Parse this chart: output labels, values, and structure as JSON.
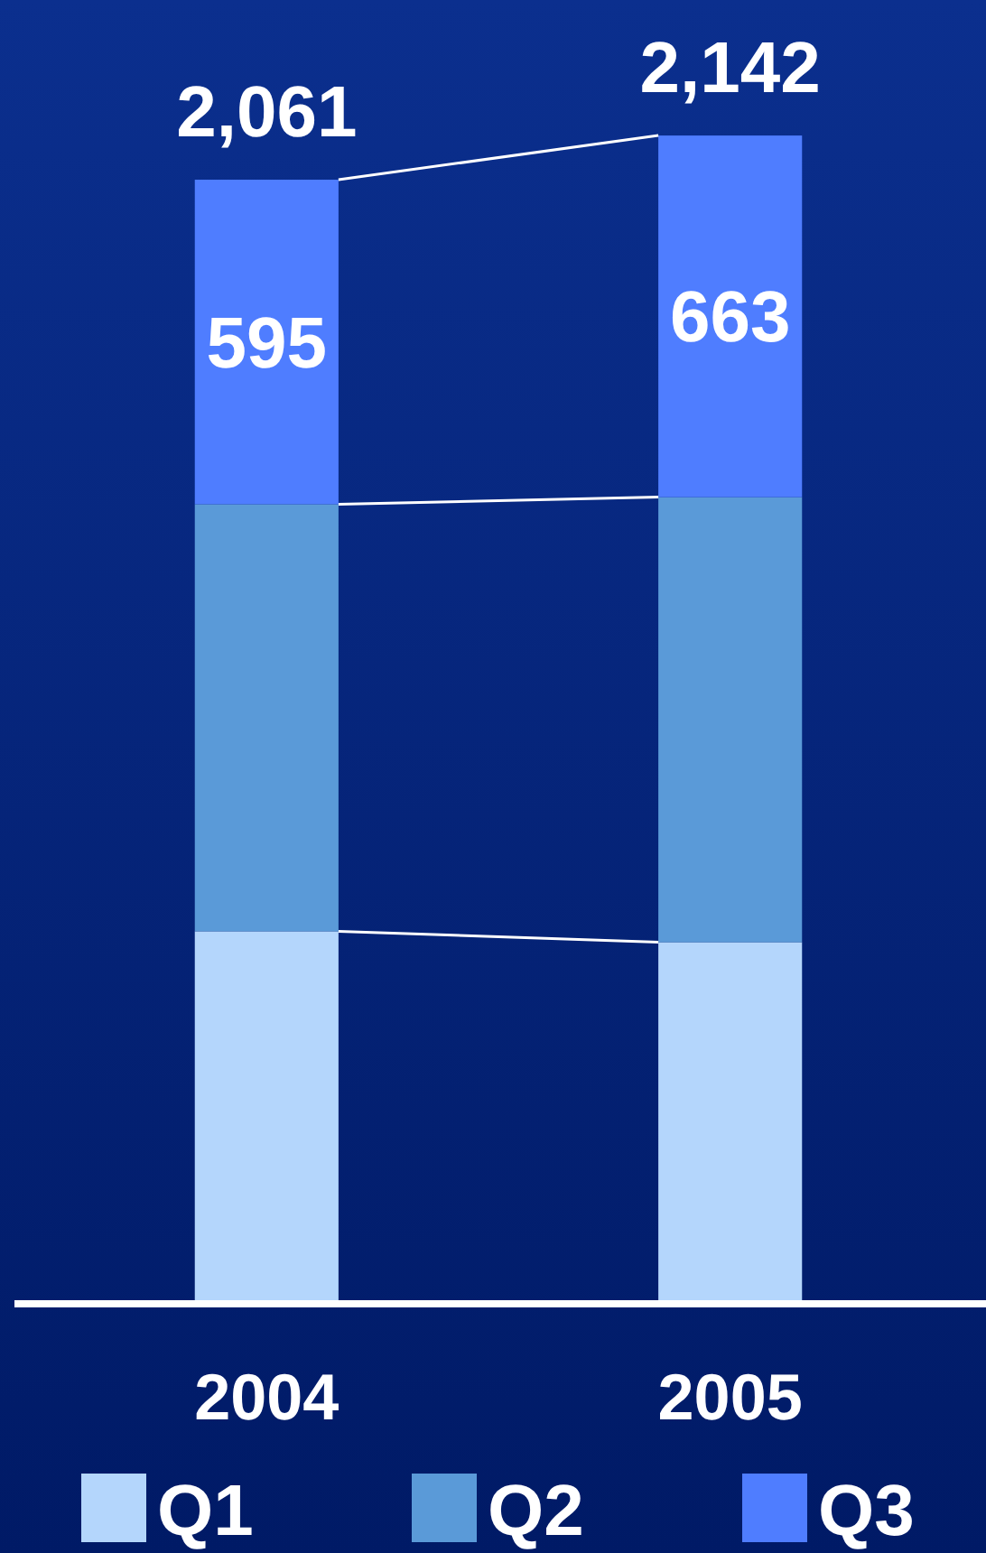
{
  "chart_data": {
    "type": "bar",
    "stacked": true,
    "categories": [
      "2004",
      "2005"
    ],
    "series": [
      {
        "name": "Q1",
        "color": "#b4d6fc",
        "values": [
          683,
          663
        ]
      },
      {
        "name": "Q2",
        "color": "#5a9ad8",
        "values": [
          783,
          816
        ]
      },
      {
        "name": "Q3",
        "color": "#4f7dff",
        "values": [
          595,
          663
        ],
        "value_labels": [
          "595",
          "663"
        ]
      }
    ],
    "totals": [
      "2,061",
      "2,142"
    ],
    "legend": "bottom"
  }
}
